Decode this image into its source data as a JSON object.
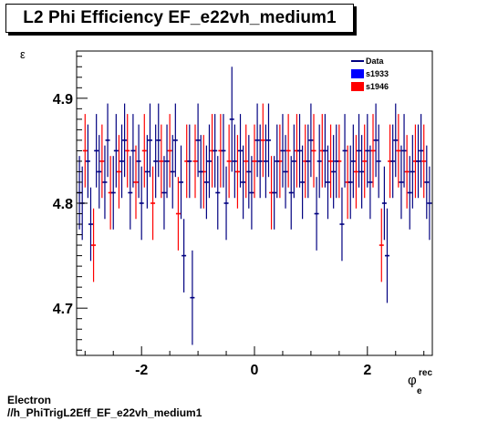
{
  "title": "L2 Phi Efficiency EF_e22vh_medium1",
  "ylabel": "ε",
  "xlabel": {
    "main": "φ",
    "sup": "rec",
    "sub": "e"
  },
  "footer": {
    "line1": "Electron",
    "line2": "//h_PhiTrigL2Eff_EF_e22vh_medium1"
  },
  "colors": {
    "data": "#000080",
    "s1933": "#0000ff",
    "s1946": "#ff0000",
    "axis": "#000000"
  },
  "chart_data": {
    "type": "scatter",
    "title": "L2 Phi Efficiency EF_e22vh_medium1",
    "xlabel": "φ_e^rec",
    "ylabel": "ε",
    "xlim": [
      -3.15,
      3.15
    ],
    "ylim": [
      4.655,
      4.945
    ],
    "x_ticks": [
      -2,
      0,
      2
    ],
    "x_tick_labels": [
      "-2",
      "0",
      "2"
    ],
    "y_ticks": [
      4.7,
      4.8,
      4.9
    ],
    "y_tick_labels": [
      "4.7",
      "4.8",
      "4.9"
    ],
    "grid": false,
    "legend_position": "top-right",
    "legend": [
      "Data",
      "s1933",
      "s1946"
    ],
    "series": [
      {
        "name": "Data",
        "x": [
          -3.1,
          -3.05,
          -2.95,
          -2.9,
          -2.8,
          -2.75,
          -2.65,
          -2.6,
          -2.5,
          -2.45,
          -2.35,
          -2.3,
          -2.2,
          -2.15,
          -2.05,
          -2.0,
          -1.9,
          -1.85,
          -1.75,
          -1.7,
          -1.6,
          -1.55,
          -1.45,
          -1.4,
          -1.3,
          -1.25,
          -1.15,
          -1.1,
          -1.0,
          -0.95,
          -0.85,
          -0.8,
          -0.7,
          -0.65,
          -0.55,
          -0.5,
          -0.4,
          -0.35,
          -0.25,
          -0.2,
          -0.1,
          -0.05,
          0.05,
          0.1,
          0.2,
          0.25,
          0.35,
          0.4,
          0.5,
          0.55,
          0.65,
          0.7,
          0.8,
          0.85,
          0.95,
          1.0,
          1.1,
          1.15,
          1.25,
          1.3,
          1.4,
          1.45,
          1.55,
          1.6,
          1.7,
          1.75,
          1.85,
          1.9,
          2.0,
          2.05,
          2.15,
          2.2,
          2.3,
          2.35,
          2.45,
          2.5,
          2.6,
          2.65,
          2.75,
          2.8,
          2.9,
          2.95,
          3.05,
          3.1
        ],
        "y": [
          4.81,
          4.8,
          4.84,
          4.78,
          4.85,
          4.83,
          4.82,
          4.86,
          4.81,
          4.85,
          4.84,
          4.86,
          4.81,
          4.85,
          4.84,
          4.8,
          4.83,
          4.86,
          4.84,
          4.86,
          4.81,
          4.84,
          4.83,
          4.86,
          4.82,
          4.75,
          4.84,
          4.71,
          4.86,
          4.83,
          4.82,
          4.84,
          4.85,
          4.81,
          4.85,
          4.8,
          4.88,
          4.84,
          4.85,
          4.82,
          4.83,
          4.81,
          4.86,
          4.84,
          4.84,
          4.86,
          4.81,
          4.84,
          4.85,
          4.83,
          4.81,
          4.84,
          4.85,
          4.82,
          4.84,
          4.86,
          4.79,
          4.84,
          4.85,
          4.82,
          4.83,
          4.84,
          4.78,
          4.85,
          4.82,
          4.84,
          4.85,
          4.83,
          4.85,
          4.82,
          4.86,
          4.84,
          4.8,
          4.75,
          4.84,
          4.86,
          4.82,
          4.85,
          4.81,
          4.83,
          4.84,
          4.85,
          4.82,
          4.8
        ],
        "yerr": [
          0.035,
          0.035,
          0.035,
          0.035,
          0.035,
          0.035,
          0.035,
          0.035,
          0.035,
          0.035,
          0.035,
          0.035,
          0.035,
          0.035,
          0.035,
          0.035,
          0.035,
          0.035,
          0.035,
          0.035,
          0.035,
          0.035,
          0.035,
          0.035,
          0.035,
          0.035,
          0.035,
          0.045,
          0.035,
          0.035,
          0.035,
          0.035,
          0.035,
          0.035,
          0.035,
          0.035,
          0.05,
          0.035,
          0.035,
          0.035,
          0.035,
          0.035,
          0.035,
          0.035,
          0.035,
          0.035,
          0.035,
          0.035,
          0.035,
          0.035,
          0.035,
          0.035,
          0.035,
          0.035,
          0.035,
          0.035,
          0.035,
          0.035,
          0.035,
          0.035,
          0.035,
          0.035,
          0.035,
          0.035,
          0.035,
          0.035,
          0.035,
          0.035,
          0.035,
          0.035,
          0.035,
          0.035,
          0.035,
          0.045,
          0.035,
          0.035,
          0.035,
          0.035,
          0.035,
          0.035,
          0.035,
          0.035,
          0.035,
          0.035
        ]
      },
      {
        "name": "s1946",
        "x": [
          -3.0,
          -2.85,
          -2.7,
          -2.55,
          -2.4,
          -2.25,
          -2.1,
          -1.95,
          -1.8,
          -1.65,
          -1.5,
          -1.35,
          -1.2,
          -1.05,
          -0.9,
          -0.75,
          -0.6,
          -0.45,
          -0.3,
          -0.15,
          0.0,
          0.15,
          0.3,
          0.45,
          0.6,
          0.75,
          0.9,
          1.05,
          1.2,
          1.35,
          1.5,
          1.65,
          1.8,
          1.95,
          2.1,
          2.25,
          2.4,
          2.55,
          2.7,
          2.85,
          3.0
        ],
        "y": [
          4.85,
          4.76,
          4.84,
          4.81,
          4.83,
          4.85,
          4.82,
          4.85,
          4.8,
          4.84,
          4.85,
          4.79,
          4.84,
          4.84,
          4.83,
          4.85,
          4.85,
          4.84,
          4.83,
          4.84,
          4.84,
          4.86,
          4.81,
          4.84,
          4.85,
          4.85,
          4.84,
          4.85,
          4.85,
          4.84,
          4.84,
          4.82,
          4.83,
          4.84,
          4.85,
          4.76,
          4.84,
          4.85,
          4.83,
          4.84,
          4.84
        ],
        "yerr": [
          0.035,
          0.035,
          0.035,
          0.035,
          0.035,
          0.035,
          0.035,
          0.035,
          0.035,
          0.035,
          0.035,
          0.035,
          0.035,
          0.035,
          0.035,
          0.035,
          0.035,
          0.035,
          0.035,
          0.035,
          0.035,
          0.035,
          0.035,
          0.035,
          0.035,
          0.035,
          0.035,
          0.035,
          0.035,
          0.035,
          0.035,
          0.035,
          0.035,
          0.035,
          0.035,
          0.035,
          0.035,
          0.035,
          0.035,
          0.035,
          0.035
        ]
      }
    ]
  }
}
